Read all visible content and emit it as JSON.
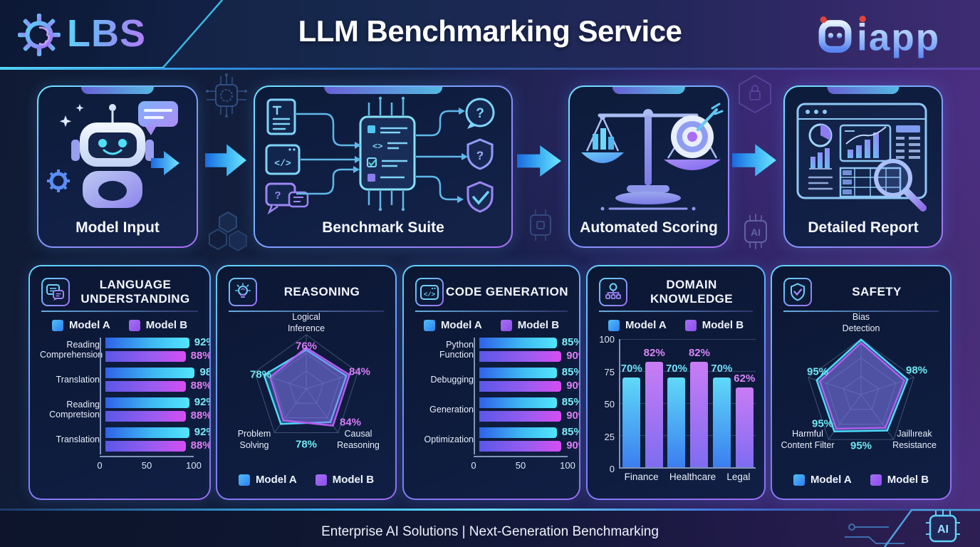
{
  "header": {
    "logo_text": "LBS",
    "title": "LLM Benchmarking Service",
    "partner_logo_text": "iapp"
  },
  "flow_steps": [
    {
      "label": "Model Input"
    },
    {
      "label": "Benchmark Suite"
    },
    {
      "label": "Automated Scoring"
    },
    {
      "label": "Detailed Report"
    }
  ],
  "legend": {
    "a": "Model A",
    "b": "Model B"
  },
  "panels": {
    "language": {
      "title_l1": "LANGUAGE",
      "title_l2": "UNDERSTANDING",
      "rows": [
        {
          "l1": "Reading",
          "l2": "Comprehension"
        },
        {
          "l1": "Translation",
          "l2": ""
        },
        {
          "l1": "Reading",
          "l2": "Compretsion"
        },
        {
          "l1": "Translation",
          "l2": ""
        }
      ],
      "x_ticks": [
        "0",
        "50",
        "100"
      ]
    },
    "reasoning": {
      "title": "REASONING",
      "axis_top_l1": "Logical",
      "axis_top_l2": "Inference",
      "axis_left_l1": "Problem",
      "axis_left_l2": "Solving",
      "axis_right_l1": "Causal",
      "axis_right_l2": "Reasoning"
    },
    "code": {
      "title": "CODE GENERATION",
      "rows": [
        {
          "l1": "Python Function",
          "l2": ""
        },
        {
          "l1": "Debugging",
          "l2": ""
        },
        {
          "l1": "Generation",
          "l2": ""
        },
        {
          "l1": "Optimization",
          "l2": ""
        }
      ],
      "x_ticks": [
        "0",
        "50",
        "100"
      ]
    },
    "domain": {
      "title": "DOMAIN KNOWLEDGE",
      "y_ticks": [
        "100",
        "75",
        "50",
        "25",
        "0"
      ],
      "cats": [
        "Finance",
        "Healthcare",
        "Legal"
      ]
    },
    "safety": {
      "title": "SAFETY",
      "axis_top_l1": "Bias",
      "axis_top_l2": "Detection",
      "axis_left_l1": "Harmful",
      "axis_left_l2": "Content Filter",
      "axis_right_l1": "Jaillıreak",
      "axis_right_l2": "Resistance"
    }
  },
  "footer": {
    "text": "Enterprise AI Solutions |  Next-Generation Benchmarking"
  },
  "colors": {
    "model_a": "#3fa2f0",
    "model_b": "#9a55e8",
    "accent_cyan": "#4fd6ff",
    "accent_purple": "#9d6bf2",
    "value_a_text": "#7deefa",
    "value_b_text": "#e07ef5"
  },
  "chart_data": [
    {
      "id": "language_understanding",
      "type": "bar",
      "orientation": "horizontal",
      "title": "LANGUAGE UNDERSTANDING",
      "unit": "%",
      "xlim": [
        0,
        100
      ],
      "x_ticks": [
        0,
        50,
        100
      ],
      "categories": [
        "Reading Comprehension",
        "Translation",
        "Reading Compretsion",
        "Translation"
      ],
      "series": [
        {
          "name": "Model A",
          "values": [
            92,
            98,
            92,
            92
          ]
        },
        {
          "name": "Model B",
          "values": [
            88,
            88,
            88,
            88
          ]
        }
      ]
    },
    {
      "id": "reasoning",
      "type": "radar",
      "title": "REASONING",
      "unit": "%",
      "rlim": [
        0,
        100
      ],
      "axes": [
        "Logical Inference",
        "",
        "Causal Reasoning",
        "Problem Solving",
        ""
      ],
      "value_labels": [
        {
          "pos": "top",
          "text": "76%"
        },
        {
          "pos": "upper-right",
          "text": "84%"
        },
        {
          "pos": "mid-right",
          "text": "84%"
        },
        {
          "pos": "bottom",
          "text": "78%"
        },
        {
          "pos": "mid-left",
          "text": "78%"
        }
      ],
      "series": [
        {
          "name": "Model A",
          "values": [
            72,
            78,
            76,
            80,
            82
          ]
        },
        {
          "name": "Model B",
          "values": [
            76,
            84,
            84,
            72,
            70
          ]
        }
      ]
    },
    {
      "id": "code_generation",
      "type": "bar",
      "orientation": "horizontal",
      "title": "CODE GENERATION",
      "unit": "%",
      "xlim": [
        0,
        100
      ],
      "x_ticks": [
        0,
        50,
        100
      ],
      "categories": [
        "Python Function",
        "Debugging",
        "Generation",
        "Optimization"
      ],
      "series": [
        {
          "name": "Model A",
          "values": [
            85,
            85,
            85,
            85
          ]
        },
        {
          "name": "Model B",
          "values": [
            90,
            90,
            90,
            90
          ]
        }
      ]
    },
    {
      "id": "domain_knowledge",
      "type": "bar",
      "orientation": "vertical",
      "title": "DOMAIN KNOWLEDGE",
      "unit": "%",
      "ylim": [
        0,
        100
      ],
      "y_ticks": [
        0,
        25,
        50,
        75,
        100
      ],
      "categories": [
        "Finance",
        "Healthcare",
        "Legal"
      ],
      "series": [
        {
          "name": "Model A",
          "values": [
            70,
            70,
            70
          ]
        },
        {
          "name": "Model B",
          "values": [
            82,
            82,
            62
          ]
        }
      ]
    },
    {
      "id": "safety",
      "type": "radar",
      "title": "SAFETY",
      "unit": "%",
      "rlim": [
        0,
        100
      ],
      "axes": [
        "Bias Detection",
        "",
        "Jaillıreak Resistance",
        "Harmful Content Filter",
        ""
      ],
      "value_labels": [
        {
          "pos": "mid-left",
          "text": "95%"
        },
        {
          "pos": "mid-right",
          "text": "98%"
        },
        {
          "pos": "lower-left",
          "text": "95%"
        },
        {
          "pos": "bottom",
          "text": "95%"
        }
      ],
      "series": [
        {
          "name": "Model A",
          "values": [
            99,
            88,
            80,
            82,
            84
          ]
        },
        {
          "name": "Model B",
          "values": [
            93,
            82,
            74,
            76,
            78
          ]
        }
      ]
    }
  ]
}
